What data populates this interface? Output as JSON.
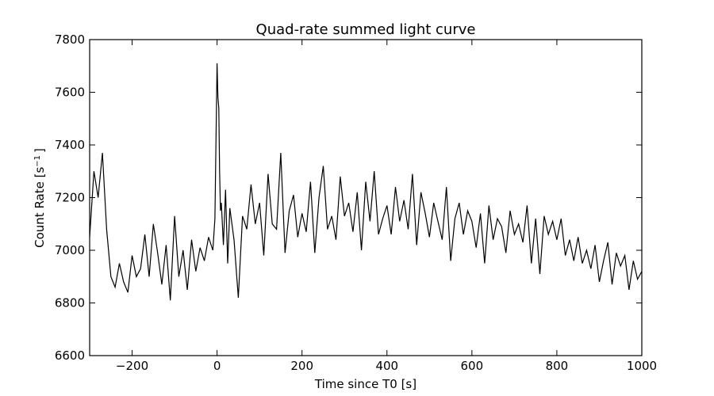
{
  "chart_data": {
    "type": "line",
    "title": "Quad-rate summed light curve",
    "xlabel": "Time since T0 [s]",
    "ylabel_main": "Count Rate [s",
    "ylabel_sup": "−1",
    "ylabel_end": "]",
    "xlim": [
      -300,
      1000
    ],
    "ylim": [
      6600,
      7800
    ],
    "xticks": [
      -200,
      0,
      200,
      400,
      600,
      800,
      1000
    ],
    "xtick_labels": [
      "−200",
      "0",
      "200",
      "400",
      "600",
      "800",
      "1000"
    ],
    "yticks": [
      6600,
      6800,
      7000,
      7200,
      7400,
      7600,
      7800
    ],
    "ytick_labels": [
      "6600",
      "6800",
      "7000",
      "7200",
      "7400",
      "7600",
      "7800"
    ],
    "grid": false,
    "series": [
      {
        "color": "#000000",
        "x": [
          -300,
          -290,
          -280,
          -270,
          -260,
          -250,
          -240,
          -230,
          -220,
          -210,
          -200,
          -190,
          -180,
          -170,
          -160,
          -150,
          -140,
          -130,
          -120,
          -110,
          -100,
          -90,
          -80,
          -70,
          -60,
          -50,
          -40,
          -30,
          -20,
          -10,
          -5,
          0,
          2,
          4,
          6,
          8,
          10,
          15,
          20,
          25,
          30,
          40,
          50,
          60,
          70,
          80,
          90,
          100,
          110,
          120,
          130,
          140,
          150,
          160,
          170,
          180,
          190,
          200,
          210,
          220,
          230,
          240,
          250,
          260,
          270,
          280,
          290,
          300,
          310,
          320,
          330,
          340,
          350,
          360,
          370,
          380,
          390,
          400,
          410,
          420,
          430,
          440,
          450,
          460,
          470,
          480,
          490,
          500,
          510,
          520,
          530,
          540,
          550,
          560,
          570,
          580,
          590,
          600,
          610,
          620,
          630,
          640,
          650,
          660,
          670,
          680,
          690,
          700,
          710,
          720,
          730,
          740,
          750,
          760,
          770,
          780,
          790,
          800,
          810,
          820,
          830,
          840,
          850,
          860,
          870,
          880,
          890,
          900,
          910,
          920,
          930,
          940,
          950,
          960,
          970,
          980,
          990,
          1000
        ],
        "y": [
          7050,
          7300,
          7200,
          7370,
          7080,
          6900,
          6860,
          6950,
          6880,
          6840,
          6980,
          6900,
          6930,
          7060,
          6900,
          7100,
          6990,
          6870,
          7020,
          6810,
          7130,
          6900,
          7000,
          6850,
          7040,
          6920,
          7010,
          6960,
          7050,
          7000,
          7120,
          7710,
          7580,
          7540,
          7300,
          7150,
          7180,
          7020,
          7230,
          6950,
          7160,
          7040,
          6820,
          7130,
          7080,
          7250,
          7100,
          7180,
          6980,
          7290,
          7100,
          7080,
          7370,
          6990,
          7150,
          7210,
          7050,
          7140,
          7070,
          7260,
          6990,
          7200,
          7320,
          7080,
          7130,
          7040,
          7280,
          7130,
          7180,
          7070,
          7220,
          7000,
          7260,
          7110,
          7300,
          7060,
          7120,
          7170,
          7060,
          7240,
          7110,
          7190,
          7080,
          7290,
          7020,
          7220,
          7140,
          7050,
          7180,
          7110,
          7040,
          7240,
          6960,
          7120,
          7180,
          7060,
          7150,
          7110,
          7010,
          7140,
          6950,
          7170,
          7040,
          7120,
          7090,
          6990,
          7150,
          7060,
          7100,
          7030,
          7170,
          6950,
          7120,
          6910,
          7130,
          7060,
          7110,
          7040,
          7120,
          6980,
          7040,
          6960,
          7050,
          6950,
          7000,
          6930,
          7020,
          6880,
          6960,
          7030,
          6870,
          6990,
          6940,
          6980,
          6850,
          6960,
          6890,
          6920
        ]
      }
    ]
  }
}
